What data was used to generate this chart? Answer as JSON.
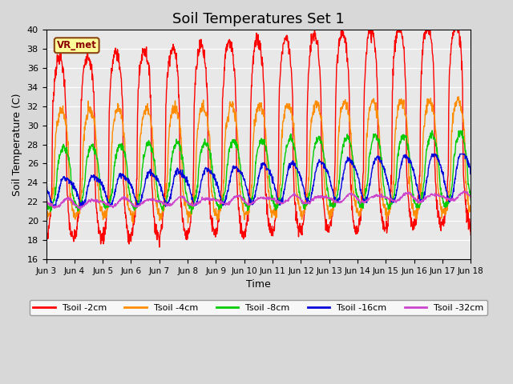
{
  "title": "Soil Temperatures Set 1",
  "xlabel": "Time",
  "ylabel": "Soil Temperature (C)",
  "ylim": [
    16,
    40
  ],
  "yticks": [
    16,
    18,
    20,
    22,
    24,
    26,
    28,
    30,
    32,
    34,
    36,
    38,
    40
  ],
  "xtick_labels": [
    "Jun 3",
    "Jun 4",
    "Jun 5",
    "Jun 6",
    "Jun 7",
    "Jun 8",
    "Jun 9",
    "Jun 10",
    "Jun 11",
    "Jun 12",
    "Jun 13",
    "Jun 14",
    "Jun 15",
    "Jun 16",
    "Jun 17",
    "Jun 18"
  ],
  "colors": {
    "Tsoil -2cm": "#ff0000",
    "Tsoil -4cm": "#ff8c00",
    "Tsoil -8cm": "#00cc00",
    "Tsoil -16cm": "#0000dd",
    "Tsoil -32cm": "#cc44cc"
  },
  "legend_label": "VR_met",
  "background_color": "#e8e8e8",
  "grid_color": "#ffffff",
  "title_fontsize": 13,
  "fig_width": 6.4,
  "fig_height": 4.8,
  "dpi": 100
}
